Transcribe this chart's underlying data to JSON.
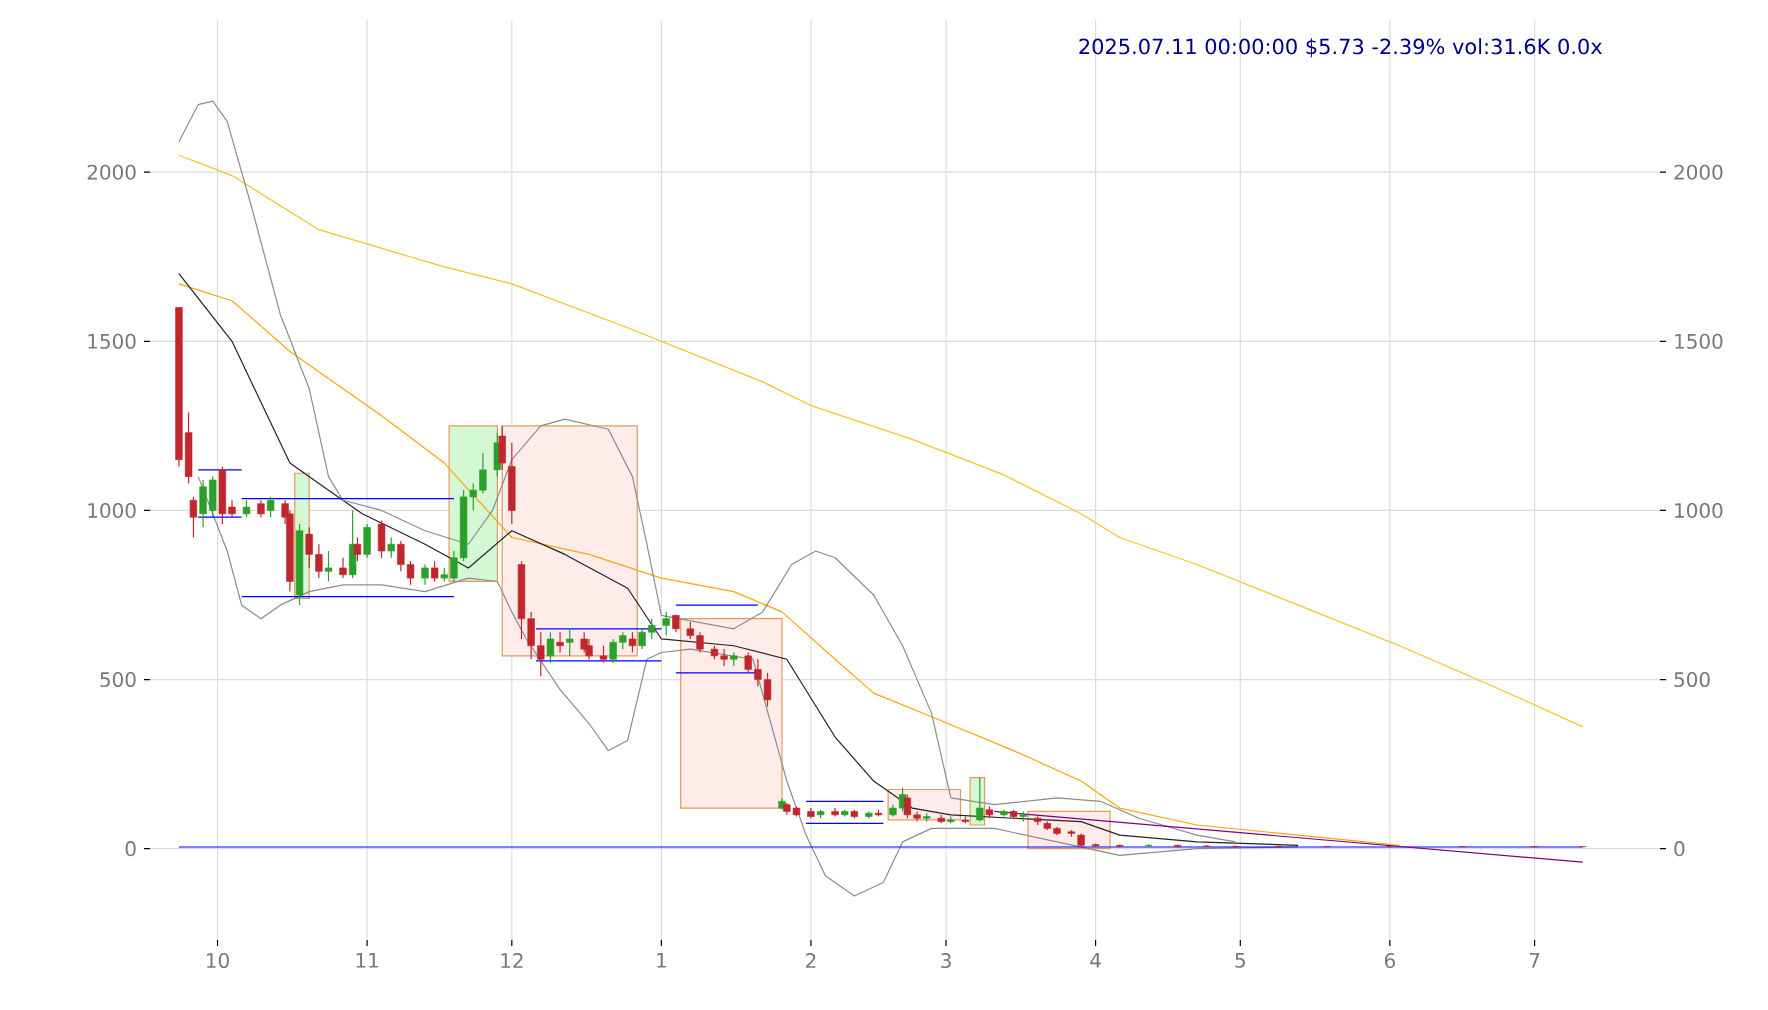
{
  "chart_data": {
    "type": "candlestick",
    "title": "2025.07.11 00:00:00 $5.73 -2.39% vol:31.6K 0.0x",
    "x": [
      "2024-09-23",
      "2024-09-25",
      "2024-09-26",
      "2024-09-28",
      "2024-09-30",
      "2024-10-02",
      "2024-10-04",
      "2024-10-07",
      "2024-10-10",
      "2024-10-12",
      "2024-10-15",
      "2024-10-16",
      "2024-10-18",
      "2024-10-20",
      "2024-10-22",
      "2024-10-24",
      "2024-10-27",
      "2024-10-29",
      "2024-10-30",
      "2024-11-01",
      "2024-11-04",
      "2024-11-06",
      "2024-11-08",
      "2024-11-10",
      "2024-11-13",
      "2024-11-15",
      "2024-11-17",
      "2024-11-19",
      "2024-11-21",
      "2024-11-23",
      "2024-11-25",
      "2024-11-28",
      "2024-11-29",
      "2024-12-01",
      "2024-12-03",
      "2024-12-05",
      "2024-12-07",
      "2024-12-09",
      "2024-12-11",
      "2024-12-13",
      "2024-12-16",
      "2024-12-17",
      "2024-12-20",
      "2024-12-22",
      "2024-12-24",
      "2024-12-26",
      "2024-12-28",
      "2024-12-30",
      "2025-01-02",
      "2025-01-04",
      "2025-01-07",
      "2025-01-09",
      "2025-01-12",
      "2025-01-14",
      "2025-01-16",
      "2025-01-19",
      "2025-01-21",
      "2025-01-23",
      "2025-01-26",
      "2025-01-27",
      "2025-01-29",
      "2025-02-01",
      "2025-02-03",
      "2025-02-06",
      "2025-02-08",
      "2025-02-10",
      "2025-02-13",
      "2025-02-15",
      "2025-02-18",
      "2025-02-20",
      "2025-02-21",
      "2025-02-23",
      "2025-02-25",
      "2025-02-28",
      "2025-03-02",
      "2025-03-05",
      "2025-03-08",
      "2025-03-10",
      "2025-03-13",
      "2025-03-15",
      "2025-03-17",
      "2025-03-20",
      "2025-03-22",
      "2025-03-24",
      "2025-03-27",
      "2025-03-29",
      "2025-04-01",
      "2025-04-06",
      "2025-04-12",
      "2025-04-18",
      "2025-04-24",
      "2025-04-30",
      "2025-05-09",
      "2025-05-19",
      "2025-06-01",
      "2025-06-16",
      "2025-07-01",
      "2025-07-11"
    ],
    "ohlc": [
      [
        1600,
        1600,
        1130,
        1150
      ],
      [
        1230,
        1290,
        1080,
        1100
      ],
      [
        1030,
        1040,
        920,
        980
      ],
      [
        990,
        1090,
        950,
        1070
      ],
      [
        1000,
        1100,
        980,
        1090
      ],
      [
        1120,
        1130,
        960,
        990
      ],
      [
        1010,
        1030,
        980,
        990
      ],
      [
        990,
        1030,
        980,
        1010
      ],
      [
        1020,
        1030,
        980,
        990
      ],
      [
        1000,
        1040,
        980,
        1030
      ],
      [
        1020,
        1030,
        960,
        980
      ],
      [
        990,
        1000,
        760,
        790
      ],
      [
        750,
        960,
        720,
        940
      ],
      [
        930,
        950,
        830,
        870
      ],
      [
        870,
        900,
        800,
        820
      ],
      [
        820,
        880,
        790,
        830
      ],
      [
        830,
        860,
        800,
        810
      ],
      [
        810,
        1000,
        800,
        900
      ],
      [
        900,
        920,
        850,
        870
      ],
      [
        870,
        960,
        860,
        950
      ],
      [
        960,
        970,
        860,
        880
      ],
      [
        880,
        920,
        860,
        900
      ],
      [
        900,
        910,
        820,
        840
      ],
      [
        840,
        850,
        780,
        800
      ],
      [
        800,
        840,
        780,
        830
      ],
      [
        830,
        850,
        790,
        800
      ],
      [
        800,
        830,
        790,
        810
      ],
      [
        800,
        880,
        790,
        860
      ],
      [
        860,
        1060,
        850,
        1040
      ],
      [
        1040,
        1080,
        1000,
        1060
      ],
      [
        1060,
        1170,
        1050,
        1120
      ],
      [
        1120,
        1230,
        1100,
        1200
      ],
      [
        1220,
        1250,
        1120,
        1140
      ],
      [
        1130,
        1200,
        960,
        1000
      ],
      [
        840,
        850,
        620,
        680
      ],
      [
        680,
        700,
        560,
        600
      ],
      [
        600,
        640,
        510,
        560
      ],
      [
        570,
        640,
        550,
        620
      ],
      [
        610,
        640,
        580,
        600
      ],
      [
        610,
        650,
        570,
        620
      ],
      [
        620,
        640,
        580,
        590
      ],
      [
        600,
        620,
        560,
        570
      ],
      [
        570,
        600,
        550,
        560
      ],
      [
        560,
        620,
        550,
        610
      ],
      [
        610,
        640,
        590,
        630
      ],
      [
        620,
        640,
        580,
        600
      ],
      [
        600,
        650,
        590,
        640
      ],
      [
        640,
        680,
        620,
        660
      ],
      [
        660,
        700,
        630,
        680
      ],
      [
        690,
        690,
        640,
        650
      ],
      [
        650,
        670,
        620,
        630
      ],
      [
        630,
        640,
        580,
        590
      ],
      [
        590,
        600,
        560,
        570
      ],
      [
        570,
        590,
        540,
        560
      ],
      [
        560,
        580,
        540,
        570
      ],
      [
        570,
        580,
        520,
        530
      ],
      [
        530,
        560,
        480,
        500
      ],
      [
        500,
        520,
        420,
        440
      ],
      [
        120,
        150,
        115,
        140
      ],
      [
        130,
        135,
        100,
        110
      ],
      [
        120,
        125,
        95,
        100
      ],
      [
        110,
        120,
        90,
        95
      ],
      [
        100,
        115,
        90,
        110
      ],
      [
        110,
        120,
        95,
        100
      ],
      [
        100,
        115,
        95,
        110
      ],
      [
        110,
        115,
        90,
        95
      ],
      [
        95,
        110,
        90,
        105
      ],
      [
        105,
        115,
        95,
        100
      ],
      [
        100,
        130,
        95,
        120
      ],
      [
        120,
        180,
        110,
        160
      ],
      [
        150,
        160,
        90,
        100
      ],
      [
        100,
        110,
        80,
        90
      ],
      [
        90,
        105,
        80,
        95
      ],
      [
        90,
        100,
        75,
        80
      ],
      [
        80,
        95,
        75,
        85
      ],
      [
        85,
        95,
        75,
        80
      ],
      [
        85,
        210,
        80,
        120
      ],
      [
        115,
        125,
        90,
        100
      ],
      [
        100,
        115,
        95,
        110
      ],
      [
        110,
        115,
        90,
        95
      ],
      [
        95,
        110,
        80,
        100
      ],
      [
        90,
        95,
        70,
        80
      ],
      [
        75,
        80,
        55,
        60
      ],
      [
        60,
        65,
        40,
        45
      ],
      [
        50,
        55,
        35,
        45
      ],
      [
        40,
        45,
        5,
        10
      ],
      [
        12,
        15,
        5,
        8
      ],
      [
        10,
        12,
        5,
        7
      ],
      [
        8,
        12,
        5,
        10
      ],
      [
        10,
        12,
        5,
        6
      ],
      [
        8,
        10,
        5,
        7
      ],
      [
        7,
        9,
        5,
        6
      ],
      [
        7,
        8,
        5,
        6
      ],
      [
        6.5,
        7,
        5,
        6
      ],
      [
        6.5,
        7,
        5,
        5.8
      ],
      [
        6.5,
        6.8,
        5.5,
        5.9
      ],
      [
        6.3,
        6.5,
        5.5,
        5.8
      ],
      [
        5.9,
        6.1,
        5.6,
        5.73
      ]
    ],
    "series": [
      {
        "type": "area",
        "color": "#d4f7d4",
        "x": [
          "2024-10-17",
          "2024-10-20"
        ],
        "values": [
          null,
          null
        ],
        "upper": [
          1110,
          1110
        ],
        "lower": [
          740,
          740
        ]
      },
      {
        "type": "area",
        "color": "#d4f7d4",
        "x": [
          "2024-11-18",
          "2024-11-28"
        ],
        "values": [
          null,
          null
        ],
        "upper": [
          1250,
          1250
        ],
        "lower": [
          790,
          790
        ]
      },
      {
        "type": "area",
        "color": "#fdecea",
        "x": [
          "2024-11-29",
          "2024-12-27"
        ],
        "values": [
          null,
          null
        ],
        "upper": [
          1250,
          1250
        ],
        "lower": [
          570,
          570
        ]
      },
      {
        "type": "area",
        "color": "#fdecea",
        "x": [
          "2025-01-05",
          "2025-01-26"
        ],
        "values": [
          null,
          null
        ],
        "upper": [
          680,
          680
        ],
        "lower": [
          120,
          120
        ]
      },
      {
        "type": "area",
        "color": "#fdecea",
        "x": [
          "2025-02-17",
          "2025-03-04"
        ],
        "values": [
          null,
          null
        ],
        "upper": [
          175,
          175
        ],
        "lower": [
          85,
          85
        ]
      },
      {
        "type": "area",
        "color": "#d4f7d4",
        "x": [
          "2025-03-06",
          "2025-03-09"
        ],
        "values": [
          null,
          null
        ],
        "upper": [
          210,
          210
        ],
        "lower": [
          70,
          70
        ]
      },
      {
        "type": "area",
        "color": "#fdecea",
        "x": [
          "2025-03-18",
          "2025-04-04"
        ],
        "values": [
          null,
          null
        ],
        "upper": [
          110,
          110
        ],
        "lower": [
          0,
          0
        ]
      },
      {
        "type": "line",
        "color": "#f5c518",
        "x": [
          "2024-09-23",
          "2024-10-04",
          "2024-10-22",
          "2024-11-17",
          "2024-12-01",
          "2024-12-25",
          "2025-01-22",
          "2025-02-01",
          "2025-02-22",
          "2025-03-13",
          "2025-03-29",
          "2025-04-06",
          "2025-04-22",
          "2025-05-13",
          "2025-06-03",
          "2025-06-24",
          "2025-07-11"
        ],
        "values": [
          2050,
          1990,
          1830,
          1720,
          1670,
          1540,
          1380,
          1310,
          1210,
          1105,
          990,
          920,
          840,
          720,
          600,
          470,
          360
        ]
      },
      {
        "type": "line",
        "color": "#ffa500",
        "x": [
          "2024-09-23",
          "2024-10-04",
          "2024-10-16",
          "2024-11-04",
          "2024-11-17",
          "2024-12-01",
          "2024-12-17",
          "2025-01-01",
          "2025-01-16",
          "2025-01-26",
          "2025-02-06",
          "2025-02-14",
          "2025-02-26",
          "2025-03-15",
          "2025-03-29",
          "2025-04-06",
          "2025-04-22",
          "2025-05-13",
          "2025-06-03"
        ],
        "values": [
          1670,
          1620,
          1470,
          1280,
          1140,
          920,
          870,
          800,
          760,
          700,
          560,
          460,
          390,
          290,
          200,
          120,
          70,
          40,
          10
        ]
      },
      {
        "type": "line",
        "color": "#222222",
        "x": [
          "2024-09-23",
          "2024-10-04",
          "2024-10-16",
          "2024-10-24",
          "2024-10-31",
          "2024-11-13",
          "2024-11-22",
          "2024-12-01",
          "2024-12-12",
          "2024-12-25",
          "2025-01-01",
          "2025-01-16",
          "2025-01-27",
          "2025-02-06",
          "2025-02-14",
          "2025-02-22",
          "2025-03-02",
          "2025-03-15",
          "2025-03-29",
          "2025-04-06",
          "2025-04-22",
          "2025-05-13"
        ],
        "values": [
          1700,
          1500,
          1140,
          1060,
          990,
          900,
          830,
          940,
          870,
          770,
          620,
          600,
          560,
          330,
          200,
          120,
          100,
          90,
          80,
          40,
          20,
          10
        ]
      },
      {
        "type": "line",
        "color": "#8c8c8c",
        "x": [
          "2024-09-23",
          "2024-09-27",
          "2024-09-30",
          "2024-10-03",
          "2024-10-08",
          "2024-10-14",
          "2024-10-20",
          "2024-10-24",
          "2024-10-27",
          "2024-11-04",
          "2024-11-13",
          "2024-11-22",
          "2024-11-27",
          "2024-12-01",
          "2024-12-07",
          "2024-12-12",
          "2024-12-21",
          "2024-12-26",
          "2024-12-29",
          "2025-01-01",
          "2025-01-16",
          "2025-01-22",
          "2025-01-28",
          "2025-02-02",
          "2025-02-06",
          "2025-02-14",
          "2025-02-20",
          "2025-02-26",
          "2025-03-02",
          "2025-03-11",
          "2025-03-24",
          "2025-04-02",
          "2025-04-10",
          "2025-04-22",
          "2025-04-30"
        ],
        "values": [
          2090,
          2200,
          2210,
          2150,
          1900,
          1580,
          1360,
          1100,
          1030,
          1000,
          940,
          900,
          1000,
          1150,
          1250,
          1270,
          1240,
          1100,
          900,
          690,
          650,
          700,
          840,
          880,
          860,
          750,
          600,
          400,
          150,
          130,
          150,
          140,
          90,
          40,
          20
        ]
      },
      {
        "type": "line",
        "color": "#8c8c8c",
        "x": [
          "2024-09-27",
          "2024-10-03",
          "2024-10-06",
          "2024-10-10",
          "2024-10-14",
          "2024-10-20",
          "2024-10-27",
          "2024-11-04",
          "2024-11-13",
          "2024-11-22",
          "2024-11-28",
          "2024-12-01",
          "2024-12-04",
          "2024-12-11",
          "2024-12-17",
          "2024-12-21",
          "2024-12-25",
          "2024-12-29",
          "2025-01-01",
          "2025-01-07",
          "2025-01-20",
          "2025-01-27",
          "2025-01-31",
          "2025-02-04",
          "2025-02-10",
          "2025-02-16",
          "2025-02-20",
          "2025-02-26",
          "2025-03-11",
          "2025-03-24",
          "2025-04-06",
          "2025-04-22",
          "2025-05-13"
        ],
        "values": [
          1100,
          880,
          720,
          680,
          720,
          760,
          780,
          780,
          760,
          800,
          790,
          700,
          620,
          470,
          370,
          290,
          320,
          560,
          580,
          590,
          560,
          200,
          40,
          -80,
          -140,
          -100,
          20,
          60,
          60,
          20,
          -20,
          0,
          5
        ]
      },
      {
        "type": "line",
        "color": "#0000ff",
        "x": [
          "2024-09-23",
          "2025-07-11"
        ],
        "values": [
          5,
          5
        ]
      },
      {
        "type": "line",
        "color": "#800080",
        "x": [
          "2025-03-11",
          "2025-07-11"
        ],
        "values": [
          110,
          -40
        ]
      },
      {
        "type": "line",
        "color": "#0000ff",
        "x": [
          "2024-09-27",
          "2024-10-06"
        ],
        "values": [
          1120,
          1120
        ]
      },
      {
        "type": "line",
        "color": "#0000ff",
        "x": [
          "2024-09-27",
          "2024-10-06"
        ],
        "values": [
          980,
          980
        ]
      },
      {
        "type": "line",
        "color": "#0000ff",
        "x": [
          "2024-10-06",
          "2024-11-19"
        ],
        "values": [
          1035,
          1035
        ]
      },
      {
        "type": "line",
        "color": "#0000ff",
        "x": [
          "2024-10-06",
          "2024-11-19"
        ],
        "values": [
          745,
          745
        ]
      },
      {
        "type": "line",
        "color": "#0000ff",
        "x": [
          "2024-12-06",
          "2025-01-01"
        ],
        "values": [
          650,
          650
        ]
      },
      {
        "type": "line",
        "color": "#0000ff",
        "x": [
          "2024-12-06",
          "2025-01-01"
        ],
        "values": [
          555,
          555
        ]
      },
      {
        "type": "line",
        "color": "#0000ff",
        "x": [
          "2025-01-04",
          "2025-01-21"
        ],
        "values": [
          720,
          720
        ]
      },
      {
        "type": "line",
        "color": "#0000ff",
        "x": [
          "2025-01-04",
          "2025-01-21"
        ],
        "values": [
          520,
          520
        ]
      },
      {
        "type": "line",
        "color": "#0000ff",
        "x": [
          "2025-01-31",
          "2025-02-16"
        ],
        "values": [
          140,
          140
        ]
      },
      {
        "type": "line",
        "color": "#0000ff",
        "x": [
          "2025-01-31",
          "2025-02-16"
        ],
        "values": [
          75,
          75
        ]
      }
    ],
    "xlim": [
      "2024-09-17",
      "2025-07-27"
    ],
    "ylim": [
      -270,
      2450
    ],
    "xticks": [
      {
        "value": "2024-10-01",
        "label": "10"
      },
      {
        "value": "2024-11-01",
        "label": "11"
      },
      {
        "value": "2024-12-01",
        "label": "12"
      },
      {
        "value": "2025-01-01",
        "label": "1"
      },
      {
        "value": "2025-02-01",
        "label": "2"
      },
      {
        "value": "2025-03-01",
        "label": "3"
      },
      {
        "value": "2025-04-01",
        "label": "4"
      },
      {
        "value": "2025-05-01",
        "label": "5"
      },
      {
        "value": "2025-06-01",
        "label": "6"
      },
      {
        "value": "2025-07-01",
        "label": "7"
      }
    ],
    "yticks": [
      0,
      500,
      1000,
      1500,
      2000
    ],
    "y2lim": [
      -270,
      2450
    ],
    "y2ticks": [
      0,
      500,
      1000,
      1500,
      2000
    ],
    "grid": true
  }
}
